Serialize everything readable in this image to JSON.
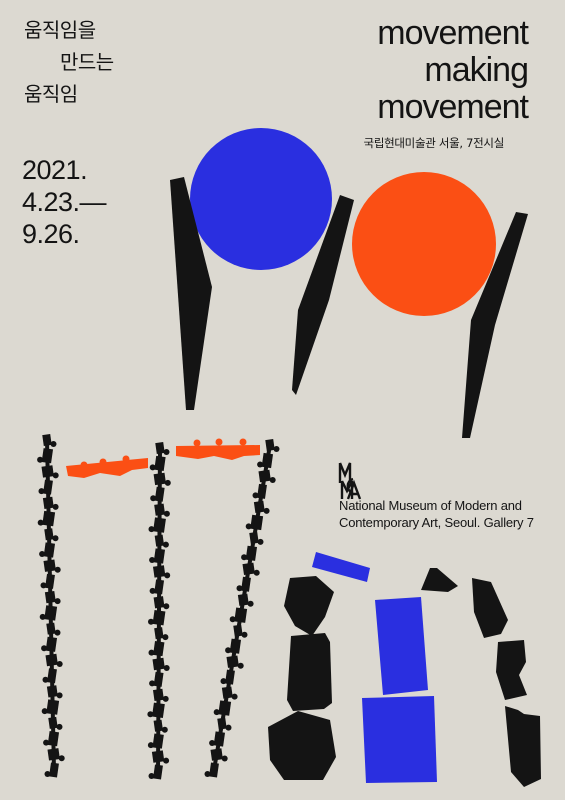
{
  "title_kr": [
    "움직임을",
    "만드는",
    "움직임"
  ],
  "title_en": [
    "movement",
    "making",
    "movement"
  ],
  "venue_kr": "국립현대미술관 서울, 7전시실",
  "dates": [
    "2021.",
    "4.23.—",
    "9.26."
  ],
  "venue_en": [
    "National Museum of Modern and",
    "Contemporary Art, Seoul. Gallery 7"
  ],
  "colors": {
    "background": "#dcd9d1",
    "ink": "#141414",
    "blue": "#2a2fe0",
    "orange": "#fb4f14"
  },
  "icons": [
    "mmca-logo"
  ]
}
